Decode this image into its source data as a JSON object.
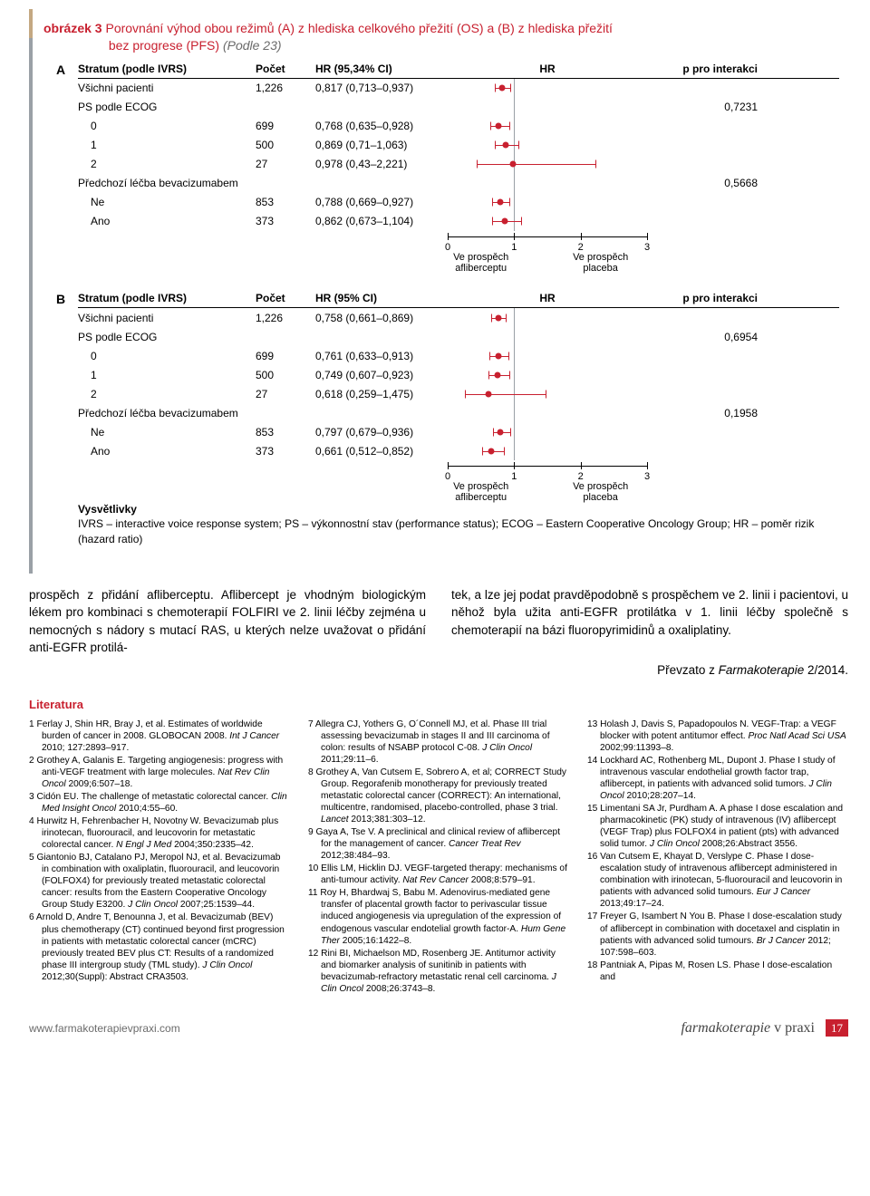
{
  "figure": {
    "label": "obrázek 3",
    "title1": "Porovnání výhod obou režimů (A) z hlediska celkového přežití (OS) a (B) z hlediska přežití",
    "title2": "bez progrese (PFS)",
    "source": "(Podle 23)"
  },
  "axis": {
    "min": 0,
    "max": 3,
    "ticks": [
      0,
      1,
      2,
      3
    ],
    "sub_left": "Ve prospěch afliberceptu",
    "sub_right": "Ve prospěch placeba",
    "ref_color": "#9aa0a6",
    "ci_color": "#c8202f"
  },
  "panelA": {
    "letter": "A",
    "head": {
      "stratum": "Stratum (podle IVRS)",
      "n": "Počet",
      "ci": "HR (95,34% CI)",
      "hr": "HR",
      "p": "p pro interakci"
    },
    "rows": [
      {
        "label": "Všichni pacienti",
        "n": "1,226",
        "ci": "0,817 (0,713–0,937)",
        "lo": 0.713,
        "hi": 0.937,
        "pt": 0.817,
        "p": "",
        "ind": 0
      },
      {
        "label": "PS podle ECOG",
        "n": "",
        "ci": "",
        "p": "0,7231",
        "ind": 0,
        "noplot": true
      },
      {
        "label": "0",
        "n": "699",
        "ci": "0,768 (0,635–0,928)",
        "lo": 0.635,
        "hi": 0.928,
        "pt": 0.768,
        "p": "",
        "ind": 1
      },
      {
        "label": "1",
        "n": "500",
        "ci": "0,869 (0,71–1,063)",
        "lo": 0.71,
        "hi": 1.063,
        "pt": 0.869,
        "p": "",
        "ind": 1
      },
      {
        "label": "2",
        "n": "27",
        "ci": "0,978 (0,43–2,221)",
        "lo": 0.43,
        "hi": 2.221,
        "pt": 0.978,
        "p": "",
        "ind": 1
      },
      {
        "label": "Předchozí léčba bevacizumabem",
        "n": "",
        "ci": "",
        "p": "0,5668",
        "ind": 0,
        "noplot": true
      },
      {
        "label": "Ne",
        "n": "853",
        "ci": "0,788 (0,669–0,927)",
        "lo": 0.669,
        "hi": 0.927,
        "pt": 0.788,
        "p": "",
        "ind": 1
      },
      {
        "label": "Ano",
        "n": "373",
        "ci": "0,862 (0,673–1,104)",
        "lo": 0.673,
        "hi": 1.104,
        "pt": 0.862,
        "p": "",
        "ind": 1
      }
    ]
  },
  "panelB": {
    "letter": "B",
    "head": {
      "stratum": "Stratum (podle IVRS)",
      "n": "Počet",
      "ci": "HR (95% CI)",
      "hr": "HR",
      "p": "p pro interakci"
    },
    "rows": [
      {
        "label": "Všichni pacienti",
        "n": "1,226",
        "ci": "0,758 (0,661–0,869)",
        "lo": 0.661,
        "hi": 0.869,
        "pt": 0.758,
        "p": "",
        "ind": 0
      },
      {
        "label": "PS podle ECOG",
        "n": "",
        "ci": "",
        "p": "0,6954",
        "ind": 0,
        "noplot": true
      },
      {
        "label": "0",
        "n": "699",
        "ci": "0,761 (0,633–0,913)",
        "lo": 0.633,
        "hi": 0.913,
        "pt": 0.761,
        "p": "",
        "ind": 1
      },
      {
        "label": "1",
        "n": "500",
        "ci": "0,749 (0,607–0,923)",
        "lo": 0.607,
        "hi": 0.923,
        "pt": 0.749,
        "p": "",
        "ind": 1
      },
      {
        "label": "2",
        "n": "27",
        "ci": "0,618 (0,259–1,475)",
        "lo": 0.259,
        "hi": 1.475,
        "pt": 0.618,
        "p": "",
        "ind": 1
      },
      {
        "label": "Předchozí léčba bevacizumabem",
        "n": "",
        "ci": "",
        "p": "0,1958",
        "ind": 0,
        "noplot": true
      },
      {
        "label": "Ne",
        "n": "853",
        "ci": "0,797 (0,679–0,936)",
        "lo": 0.679,
        "hi": 0.936,
        "pt": 0.797,
        "p": "",
        "ind": 1
      },
      {
        "label": "Ano",
        "n": "373",
        "ci": "0,661 (0,512–0,852)",
        "lo": 0.512,
        "hi": 0.852,
        "pt": 0.661,
        "p": "",
        "ind": 1
      }
    ]
  },
  "legend": {
    "head": "Vysvětlivky",
    "text": "IVRS – interactive voice response system; PS – výkonnostní stav (performance status); ECOG – Eastern Cooperative Oncology Group; HR – poměr rizik (hazard ratio)"
  },
  "body": {
    "p1": "prospěch z přidání afliberceptu. Aflibercept je vhodným biologickým lékem pro kombinaci s chemoterapií FOLFIRI ve 2. linii léčby zejména u nemocných s nádory s mutací RAS, u kterých nelze uvažovat o přidání anti-EGFR protilá-",
    "p2": "tek, a lze jej podat pravděpodobně s prospěchem ve 2. linii i pacientovi, u něhož byla užita anti-EGFR protilátka v 1. linii léčby společně s chemoterapií na bázi fluoropyrimidinů a oxaliplatiny.",
    "credit_prefix": "Převzato z ",
    "credit_ital": "Farmakoterapie",
    "credit_suffix": " 2/2014."
  },
  "lit_head": "Literatura",
  "refs": [
    {
      "n": "1",
      "t": "Ferlay J, Shin HR, Bray J, et al. Estimates of worldwide burden of cancer in 2008. GLOBOCAN 2008. ",
      "j": "Int J Cancer",
      "r": " 2010; 127:2893–917."
    },
    {
      "n": "2",
      "t": "Grothey A, Galanis E. Targeting angiogenesis: progress with anti-VEGF treatment with large molecules. ",
      "j": "Nat Rev Clin Oncol",
      "r": " 2009;6:507–18."
    },
    {
      "n": "3",
      "t": "Cidón EU. The challenge of metastatic colorectal cancer. ",
      "j": "Clin Med Insight Oncol",
      "r": " 2010;4:55–60."
    },
    {
      "n": "4",
      "t": "Hurwitz H, Fehrenbacher H, Novotny W. Bevacizumab plus irinotecan, fluorouracil, and leucovorin for metastatic colorectal cancer. ",
      "j": "N Engl J Med",
      "r": " 2004;350:2335–42."
    },
    {
      "n": "5",
      "t": "Giantonio BJ, Catalano PJ, Meropol NJ, et al. Bevacizumab in combination with oxaliplatin, fluorouracil, and leucovorin (FOLFOX4) for previously treated metastatic colorectal cancer: results from the Eastern Cooperative Oncology Group Study E3200. ",
      "j": "J Clin Oncol",
      "r": " 2007;25:1539–44."
    },
    {
      "n": "6",
      "t": "Arnold D, Andre T, Benounna J, et al. Bevacizumab (BEV) plus chemotherapy (CT) continued beyond first progression in patients with metastatic colorectal cancer (mCRC) previously treated BEV plus CT: Results of a randomized phase III intergroup study (TML study). ",
      "j": "J Clin Oncol",
      "r": " 2012;30(Suppl): Abstract CRA3503."
    },
    {
      "n": "7",
      "t": "Allegra CJ, Yothers G, O´Connell MJ, et al. Phase III trial assessing bevacizumab in stages II and III carcinoma of colon: results of NSABP protocol C-08. ",
      "j": "J Clin Oncol",
      "r": " 2011;29:11–6."
    },
    {
      "n": "8",
      "t": "Grothey A, Van Cutsem E, Sobrero A, et al; CORRECT Study Group. Regorafenib monotherapy for previously treated metastatic colorectal cancer (CORRECT): An international, multicentre, randomised, placebo-controlled, phase 3 trial. ",
      "j": "Lancet",
      "r": " 2013;381:303–12."
    },
    {
      "n": "9",
      "t": "Gaya A, Tse V. A preclinical and clinical review of aflibercept for the management of cancer. ",
      "j": "Cancer Treat Rev",
      "r": " 2012;38:484–93."
    },
    {
      "n": "10",
      "t": "Ellis LM, Hicklin DJ. VEGF-targeted therapy: mechanisms of anti-tumour activity. ",
      "j": "Nat Rev Cancer",
      "r": " 2008;8:579–91."
    },
    {
      "n": "11",
      "t": "Roy H, Bhardwaj S, Babu M. Adenovirus-mediated gene transfer of placental growth factor to perivascular tissue induced angiogenesis via upregulation of the expression of endogenous vascular endotelial growth factor-A. ",
      "j": "Hum Gene Ther",
      "r": " 2005;16:1422–8."
    },
    {
      "n": "12",
      "t": "Rini BI, Michaelson MD, Rosenberg JE. Antitumor activity and biomarker analysis of sunitinib in patients with bevacizumab-refractory metastatic renal cell carcinoma. ",
      "j": "J Clin Oncol",
      "r": " 2008;26:3743–8."
    },
    {
      "n": "13",
      "t": "Holash J, Davis S, Papadopoulos N. VEGF-Trap: a VEGF blocker with potent antitumor effect. ",
      "j": "Proc Natl Acad Sci USA",
      "r": " 2002;99:11393–8."
    },
    {
      "n": "14",
      "t": "Lockhard AC, Rothenberg ML, Dupont J. Phase I study of intravenous vascular endothelial growth factor trap, aflibercept, in patients with advanced solid tumors. ",
      "j": "J Clin Oncol",
      "r": " 2010;28:207–14."
    },
    {
      "n": "15",
      "t": "Limentani SA Jr, Purdham A. A phase I dose escalation and pharmacokinetic (PK) study of intravenous (IV) aflibercept (VEGF Trap) plus FOLFOX4 in patient (pts) with advanced solid tumor. ",
      "j": "J Clin Oncol",
      "r": " 2008;26:Abstract 3556."
    },
    {
      "n": "16",
      "t": "Van Cutsem E, Khayat D, Verslype C. Phase I dose-escalation study of intravenous aflibercept administered in combination with irinotecan, 5-fluorouracil and leucovorin in patients with advanced solid tumours. ",
      "j": "Eur J Cancer",
      "r": " 2013;49:17–24."
    },
    {
      "n": "17",
      "t": "Freyer G, Isambert N You B. Phase I dose-escalation study of aflibercept in combination with docetaxel and cisplatin in patients with advanced solid tumours. ",
      "j": "Br J Cancer",
      "r": " 2012; 107:598–603."
    },
    {
      "n": "18",
      "t": "Pantniak A, Pipas M, Rosen LS. Phase I dose-escalation and",
      "j": "",
      "r": ""
    }
  ],
  "footer": {
    "url": "www.farmakoterapievpraxi.com",
    "brand1": "farmakoterapie",
    "brand2": " v praxi",
    "page": "17"
  }
}
